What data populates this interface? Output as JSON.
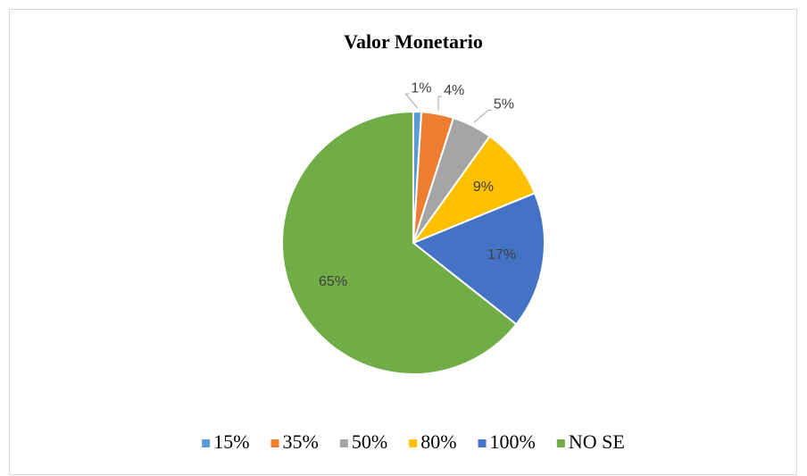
{
  "chart_data": {
    "type": "pie",
    "title": "Valor Monetario",
    "categories": [
      "15%",
      "35%",
      "50%",
      "80%",
      "100%",
      "NO SE"
    ],
    "values": [
      1,
      4,
      5,
      9,
      17,
      65
    ],
    "value_labels": [
      "1%",
      "4%",
      "5%",
      "9%",
      "17%",
      "65%"
    ],
    "colors": [
      "#5b9bd5",
      "#ed7d31",
      "#a5a5a5",
      "#ffc000",
      "#4472c4",
      "#70ad47"
    ],
    "legend": "bottom"
  }
}
